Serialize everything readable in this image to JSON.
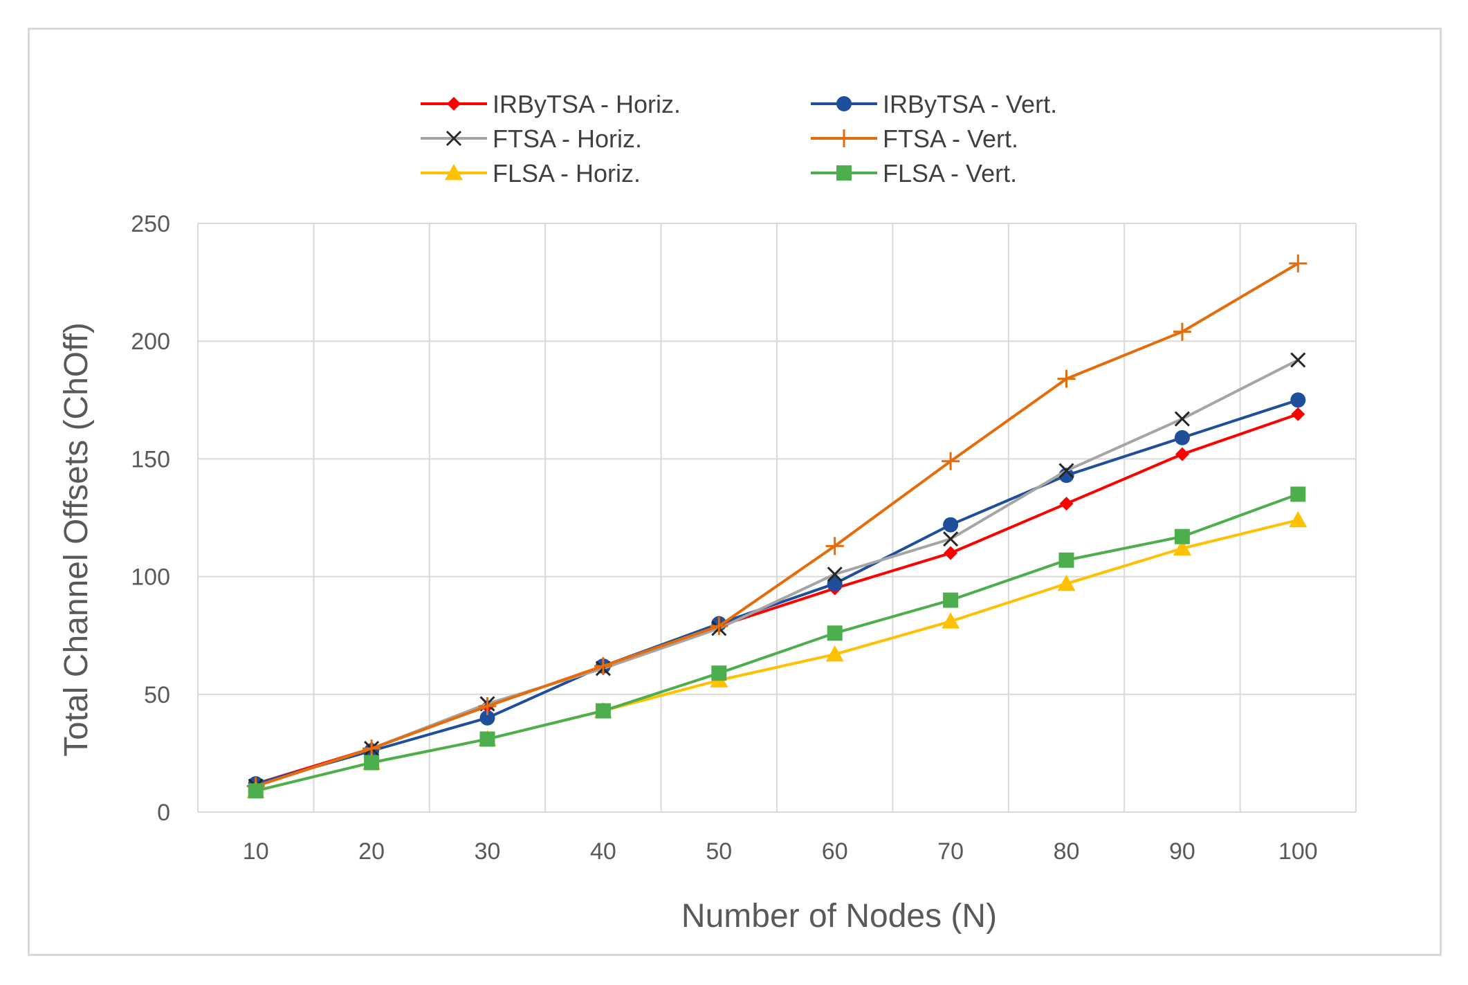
{
  "chart_data": {
    "type": "line",
    "title": "",
    "xlabel": "Number of Nodes (N)",
    "ylabel": "Total Channel Offsets (ChOff)",
    "categories": [
      "10",
      "20",
      "30",
      "40",
      "50",
      "60",
      "70",
      "80",
      "90",
      "100"
    ],
    "ylim": [
      0,
      250
    ],
    "yticks": [
      "0",
      "50",
      "100",
      "150",
      "200",
      "250"
    ],
    "grid": true,
    "legend_position": "top",
    "series": [
      {
        "name": "IRByTSA - Horiz.",
        "color": "#ff0000",
        "marker": "diamond",
        "values": [
          12,
          27,
          45,
          62,
          79,
          95,
          110,
          131,
          152,
          169
        ]
      },
      {
        "name": "IRByTSA - Vert.",
        "color": "#1f4e9a",
        "marker": "circle",
        "values": [
          12,
          26,
          40,
          62,
          80,
          97,
          122,
          143,
          159,
          175
        ]
      },
      {
        "name": "FTSA - Horiz.",
        "color": "#a5a5a5",
        "marker_color": "#262626",
        "marker": "x",
        "values": [
          11,
          27,
          46,
          61,
          78,
          101,
          116,
          145,
          167,
          192
        ]
      },
      {
        "name": "FTSA - Vert.",
        "color": "#e46c0a",
        "marker": "plus",
        "values": [
          11,
          27,
          45,
          62,
          79,
          113,
          149,
          184,
          204,
          233
        ]
      },
      {
        "name": "FLSA - Horiz.",
        "color": "#ffc000",
        "marker": "triangle",
        "values": [
          9,
          21,
          31,
          43,
          56,
          67,
          81,
          97,
          112,
          124
        ]
      },
      {
        "name": "FLSA - Vert.",
        "color": "#4cae4c",
        "marker": "square",
        "values": [
          9,
          21,
          31,
          43,
          59,
          76,
          90,
          107,
          117,
          135
        ]
      }
    ]
  }
}
